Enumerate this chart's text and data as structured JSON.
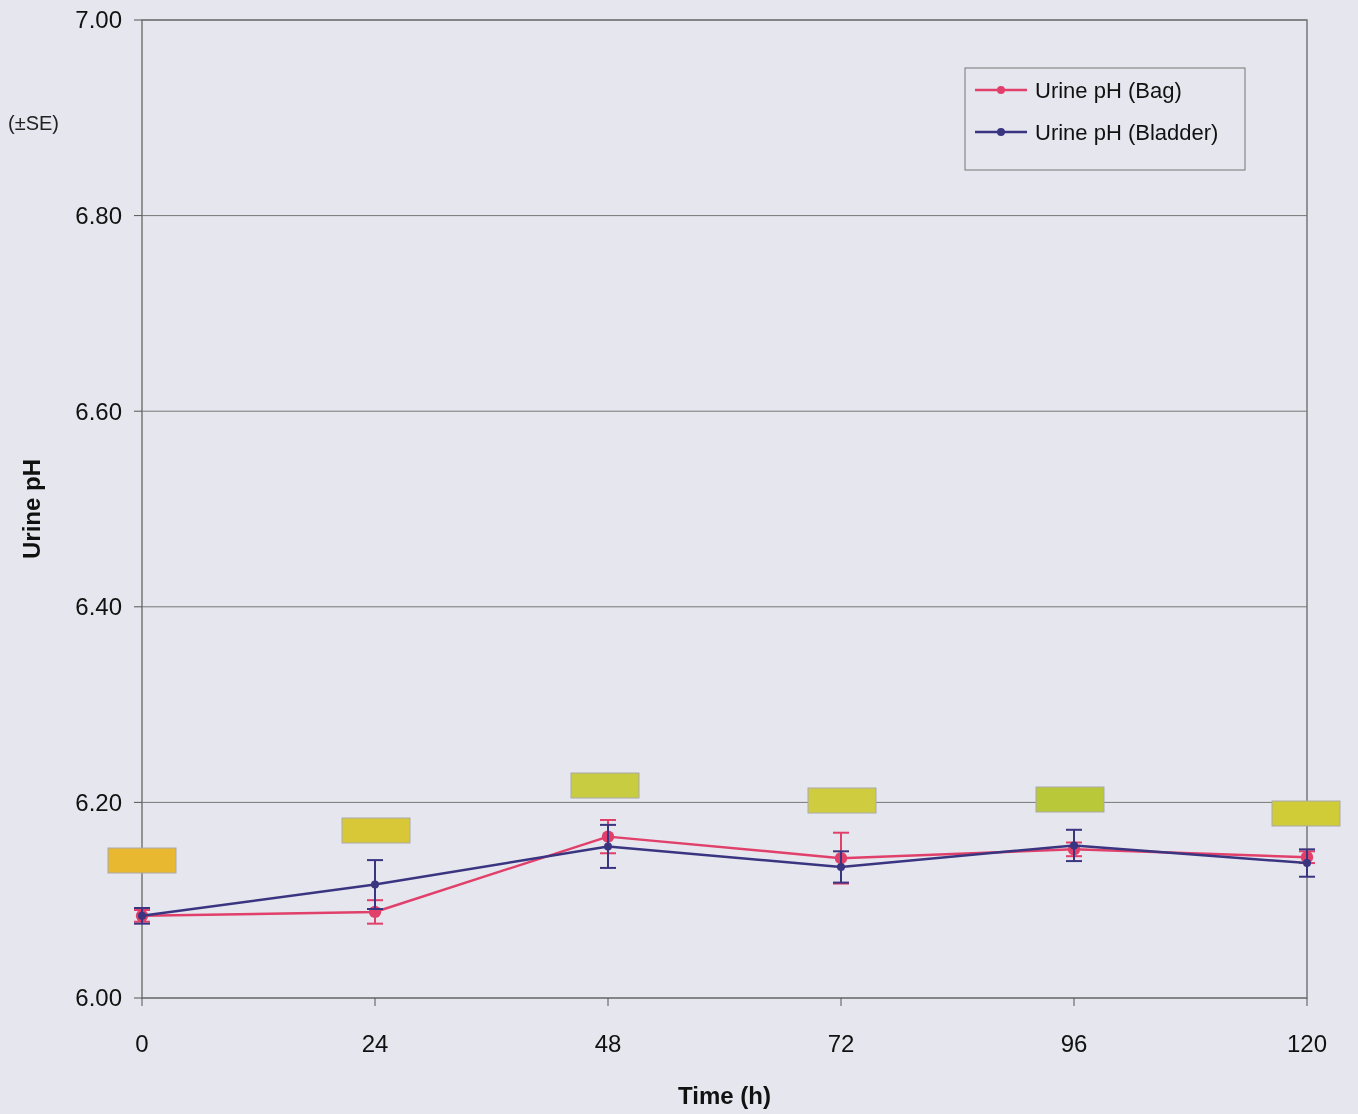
{
  "chart_data": {
    "type": "line",
    "xlabel": "Time (h)",
    "ylabel": "Urine pH",
    "annotations": [
      "(±SE)"
    ],
    "x": [
      0,
      24,
      48,
      72,
      96,
      120
    ],
    "series": [
      {
        "name": "Urine pH (Bag)",
        "color": "#e0406a",
        "values": [
          6.084,
          6.088,
          6.165,
          6.143,
          6.152,
          6.144
        ],
        "errors": [
          0.006,
          0.012,
          0.017,
          0.026,
          0.007,
          0.006
        ]
      },
      {
        "name": "Urine pH (Bladder)",
        "color": "#3a3580",
        "values": [
          6.084,
          6.116,
          6.155,
          6.134,
          6.156,
          6.138
        ],
        "errors": [
          0.008,
          0.025,
          0.022,
          0.016,
          0.016,
          0.014
        ]
      }
    ],
    "xlim": [
      0,
      120
    ],
    "xticks": [
      0,
      24,
      48,
      72,
      96,
      120
    ],
    "ylim": [
      6,
      7
    ],
    "yticks": [
      {
        "value": 6,
        "label": "6.00"
      },
      {
        "value": 6.2,
        "label": "6.20"
      },
      {
        "value": 6.4,
        "label": "6.40"
      },
      {
        "value": 6.6,
        "label": "6.60"
      },
      {
        "value": 6.8,
        "label": "6.80"
      },
      {
        "value": 7,
        "label": "7.00"
      }
    ],
    "grid": "y",
    "legend": "top right",
    "marker": "circle",
    "line_style": "solid"
  }
}
